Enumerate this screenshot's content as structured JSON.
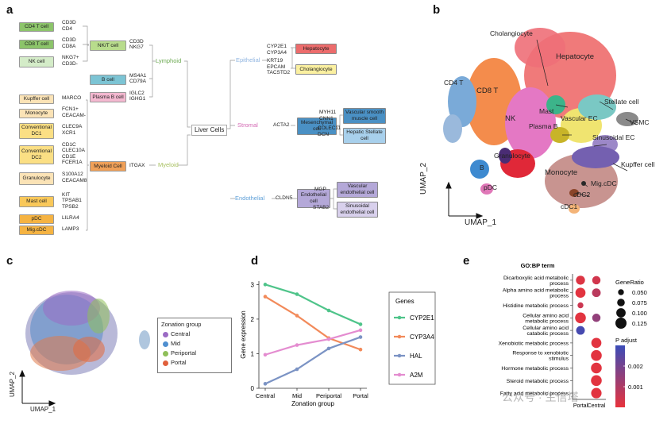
{
  "panels": {
    "a": "a",
    "b": "b",
    "c": "c",
    "d": "d",
    "e": "e"
  },
  "panel_a": {
    "root": "Liver Cells",
    "lineages": {
      "lymphoid": "Lymphoid",
      "myeloid": "Myeloid",
      "epithelial": "Epithelial",
      "stromal": "Stromal",
      "endothelial": "Endothelial"
    },
    "left_boxes": [
      {
        "label": "CD4 T cell",
        "markers": [
          "CD3D",
          "CD4"
        ],
        "color": "#8cc46a"
      },
      {
        "label": "CD8 T cell",
        "markers": [
          "CD3D",
          "CD8A"
        ],
        "color": "#8cc46a"
      },
      {
        "label": "NK cell",
        "markers": [
          "NKG7+",
          "CD3D-"
        ],
        "color": "#d4ecc8"
      },
      {
        "label": "Kupffer cell",
        "markers": [
          "MARCO"
        ],
        "color": "#fbe3b6"
      },
      {
        "label": "Monocyte",
        "markers": [
          "FCN1+",
          "CEACAM-"
        ],
        "color": "#fbe3b6"
      },
      {
        "label": "Conventional DC1",
        "markers": [
          "CLEC9A",
          "XCR1"
        ],
        "color": "#fbdf84"
      },
      {
        "label": "Conventional DC2",
        "markers": [
          "CD1C",
          "CLEC10A",
          "CD1E",
          "FCER1A"
        ],
        "color": "#fbdf84"
      },
      {
        "label": "Granulocyte",
        "markers": [
          "S100A12",
          "CEACAM8"
        ],
        "color": "#fbe3b6"
      },
      {
        "label": "Mast cell",
        "markers": [
          "KIT",
          "TPSAB1",
          "TPSB2"
        ],
        "color": "#f9c85a"
      },
      {
        "label": "pDC",
        "markers": [
          "LILRA4"
        ],
        "color": "#f5b342"
      },
      {
        "label": "Mig.cDC",
        "markers": [
          "LAMP3"
        ],
        "color": "#f5b342"
      }
    ],
    "mid_boxes": [
      {
        "label": "NK/T cell",
        "markers": [
          "CD3D",
          "NKG7"
        ],
        "color": "#b8dc8c"
      },
      {
        "label": "B cell",
        "markers": [
          "MS4A1",
          "CD79A"
        ],
        "color": "#7cc4d4"
      },
      {
        "label": "Plasma B cell",
        "markers": [
          "IGLC2",
          "IGHG1"
        ],
        "color": "#f4b8d0"
      },
      {
        "label": "Myeloid Cell",
        "markers": [
          "ITGAX"
        ],
        "color": "#f0a058"
      }
    ],
    "right_boxes": [
      {
        "label": "Hepatocyte",
        "markers": [
          "CYP2E1",
          "CYP3A4"
        ],
        "color": "#ec6c6c"
      },
      {
        "label": "Cholangiocyte",
        "markers": [
          "KRT19",
          "EPCAM",
          "TACSTD2"
        ],
        "color": "#fbf0a0"
      },
      {
        "label": "Mesenchymal cell",
        "markers": [
          "ACTA2"
        ],
        "color": "#4a90c4"
      },
      {
        "label": "Vascular smooth muscle cell",
        "markers": [
          "MYH11",
          "CNN1"
        ],
        "color": "#4a90c4"
      },
      {
        "label": "Hepatic Stellate cell",
        "markers": [
          "COLEC11",
          "DCN"
        ],
        "color": "#a8d0ec"
      },
      {
        "label": "Endothelial cell",
        "markers": [
          "CLDN5"
        ],
        "color": "#b4a8d8"
      },
      {
        "label": "Vascular endothelial cell",
        "markers": [
          "MGP"
        ],
        "color": "#b4a8d8"
      },
      {
        "label": "Sinusoidal endothelial cell",
        "markers": [
          "STAB2"
        ],
        "color": "#d8d0ec"
      }
    ]
  },
  "panel_b": {
    "xlabel": "UMAP_1",
    "ylabel": "UMAP_2",
    "labels": [
      "Cholangiocyte",
      "Hepatocyte",
      "CD4 T",
      "CD8 T",
      "Mast",
      "Stellate cell",
      "NK",
      "Vascular EC",
      "VSMC",
      "Plasma B",
      "Sinusoidal EC",
      "Granulocyte",
      "Kupffer cell",
      "B",
      "Monocyte",
      "pDC",
      "Mig.cDC",
      "cDC2",
      "cDC1"
    ]
  },
  "panel_c": {
    "xlabel": "UMAP_1",
    "ylabel": "UMAP_2",
    "legend_title": "Zonation group",
    "legend": [
      {
        "name": "Central",
        "color": "#9b6bc4"
      },
      {
        "name": "Mid",
        "color": "#4f8fd0"
      },
      {
        "name": "Periportal",
        "color": "#8fbf5a"
      },
      {
        "name": "Portal",
        "color": "#e0603c"
      }
    ]
  },
  "chart_data": [
    {
      "type": "line",
      "categories": [
        "Central",
        "Mid",
        "Periportal",
        "Portal"
      ],
      "xlabel": "Zonation group",
      "ylabel": "Gene expression",
      "ylim": [
        0,
        3.1
      ],
      "yticks": [
        "0",
        "1",
        "2",
        "3"
      ],
      "legend_title": "Genes",
      "legend_position": "right",
      "series": [
        {
          "name": "CYP2E1",
          "values": [
            3.0,
            2.72,
            2.25,
            1.85
          ],
          "color": "#4fc48a"
        },
        {
          "name": "CYP3A4",
          "values": [
            2.65,
            2.1,
            1.45,
            1.12
          ],
          "color": "#f28a5a"
        },
        {
          "name": "HAL",
          "values": [
            0.13,
            0.55,
            1.15,
            1.48
          ],
          "color": "#7b93c4"
        },
        {
          "name": "A2M",
          "values": [
            0.97,
            1.25,
            1.42,
            1.68
          ],
          "color": "#e48cd0"
        }
      ]
    },
    {
      "type": "scatter",
      "title": "GO:BP term",
      "categories": [
        "Portal",
        "Central"
      ],
      "terms": [
        "Dicarboxylic acid metabolic process",
        "Alpha amino acid metabolic process",
        "Histidine metabolic process",
        "Cellular amino acid metabolic process",
        "Cellular amino acid catabolic process",
        "Xenobiotic metabolic process",
        "Response to xenobiotic stimulus",
        "Hormone metabolic process",
        "Steroid metabolic process",
        "Fatty acid metabolic process"
      ],
      "term_lines": [
        [
          "Dicarboxylic acid metabolic",
          "process"
        ],
        [
          "Alpha amino acid metabolic",
          "process"
        ],
        [
          "Histidine metabolic process"
        ],
        [
          "Cellular amino acid",
          "metabolic process"
        ],
        [
          "Cellular amino acid",
          "catabolic process"
        ],
        [
          "Xenobiotic metabolic process"
        ],
        [
          "Response to xenobiotic",
          "stimulus"
        ],
        [
          "Hormone metabolic process"
        ],
        [
          "Steroid metabolic process"
        ],
        [
          "Fatty acid metabolic process"
        ]
      ],
      "points": [
        {
          "term": 0,
          "group": "Portal",
          "gene_ratio": 0.095,
          "p_adjust": 0.0002
        },
        {
          "term": 0,
          "group": "Central",
          "gene_ratio": 0.085,
          "p_adjust": 0.0004
        },
        {
          "term": 1,
          "group": "Portal",
          "gene_ratio": 0.11,
          "p_adjust": 0.0001
        },
        {
          "term": 1,
          "group": "Central",
          "gene_ratio": 0.09,
          "p_adjust": 0.0008
        },
        {
          "term": 2,
          "group": "Portal",
          "gene_ratio": 0.05,
          "p_adjust": 0.0005
        },
        {
          "term": 3,
          "group": "Portal",
          "gene_ratio": 0.12,
          "p_adjust": 0.0001
        },
        {
          "term": 3,
          "group": "Central",
          "gene_ratio": 0.085,
          "p_adjust": 0.0015
        },
        {
          "term": 4,
          "group": "Portal",
          "gene_ratio": 0.09,
          "p_adjust": 0.0028
        },
        {
          "term": 5,
          "group": "Central",
          "gene_ratio": 0.11,
          "p_adjust": 0.0001
        },
        {
          "term": 6,
          "group": "Central",
          "gene_ratio": 0.12,
          "p_adjust": 0.0001
        },
        {
          "term": 7,
          "group": "Central",
          "gene_ratio": 0.12,
          "p_adjust": 0.0001
        },
        {
          "term": 8,
          "group": "Central",
          "gene_ratio": 0.12,
          "p_adjust": 0.0001
        },
        {
          "term": 9,
          "group": "Central",
          "gene_ratio": 0.115,
          "p_adjust": 0.0001
        }
      ],
      "size_legend_title": "GeneRatio",
      "size_legend": [
        "0.050",
        "0.075",
        "0.100",
        "0.125"
      ],
      "size_legend_values": [
        0.05,
        0.075,
        0.1,
        0.125
      ],
      "color_legend_title": "P adjust",
      "color_legend_ticks": [
        "0.002",
        "0.001"
      ],
      "colors": {
        "low": "#e8333c",
        "high": "#3b4cb8"
      }
    }
  ],
  "watermark": "公众号 · 生信塔"
}
